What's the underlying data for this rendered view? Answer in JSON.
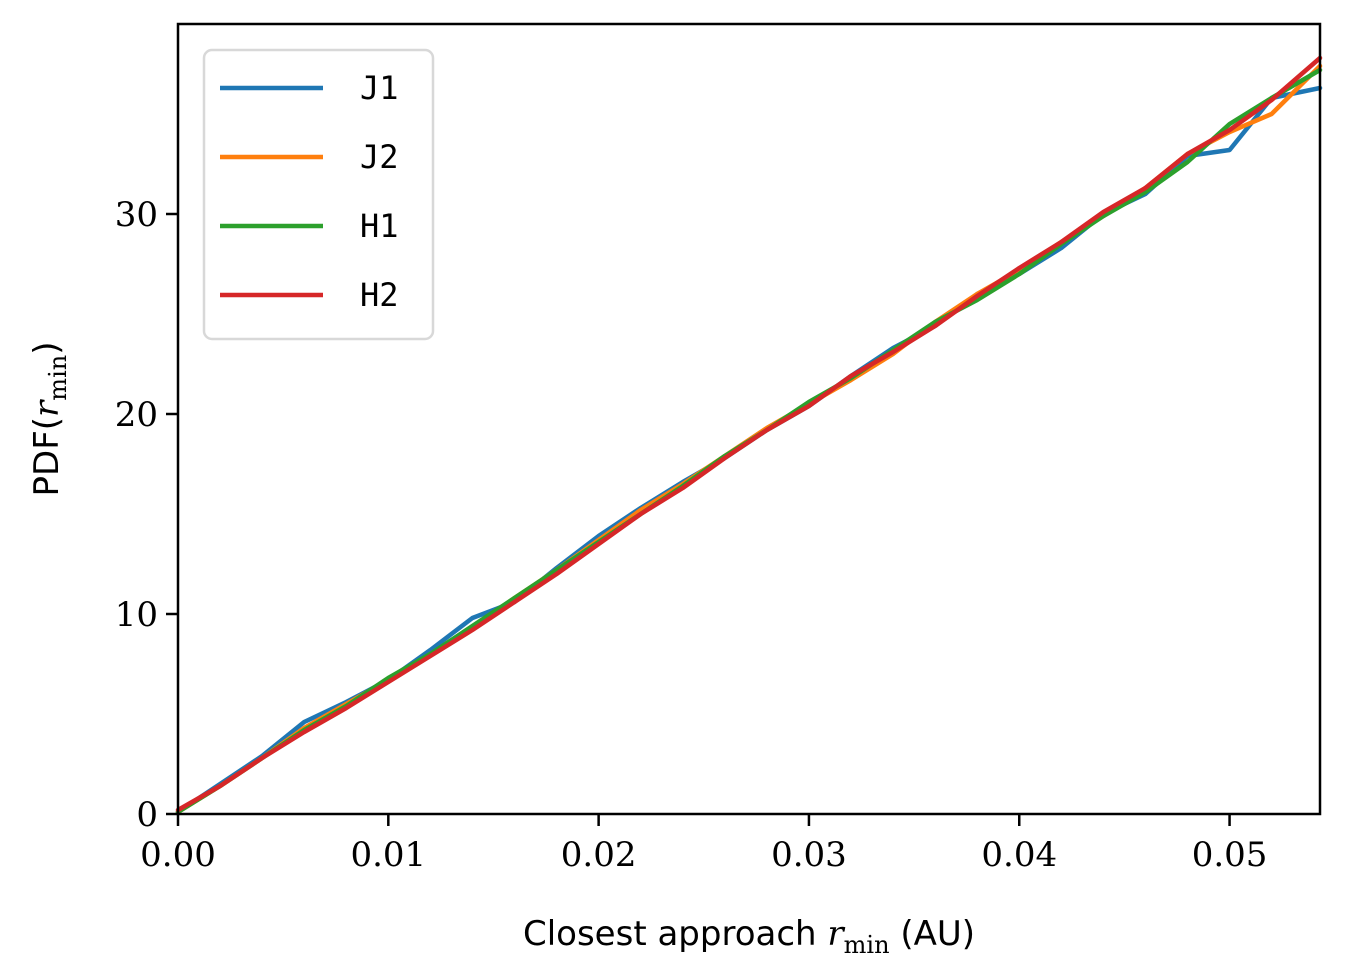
{
  "chart_data": {
    "type": "line",
    "title": "",
    "xlabel_pre": "Closest approach ",
    "xlabel_var": "r",
    "xlabel_sub": "min",
    "xlabel_post": " (AU)",
    "ylabel_pre": "PDF(",
    "ylabel_var": "r",
    "ylabel_sub": "min",
    "ylabel_post": ")",
    "xlim": [
      0,
      0.0543
    ],
    "ylim": [
      0,
      39.5
    ],
    "xticks": [
      0,
      0.01,
      0.02,
      0.03,
      0.04,
      0.05
    ],
    "xtick_labels": [
      "0.00",
      "0.01",
      "0.02",
      "0.03",
      "0.04",
      "0.05"
    ],
    "yticks": [
      0,
      10,
      20,
      30
    ],
    "ytick_labels": [
      "0",
      "10",
      "20",
      "30"
    ],
    "grid": false,
    "legend_position": "top-left",
    "x": [
      0.0,
      0.002,
      0.004,
      0.006,
      0.008,
      0.01,
      0.012,
      0.014,
      0.016,
      0.018,
      0.02,
      0.022,
      0.024,
      0.026,
      0.028,
      0.03,
      0.032,
      0.034,
      0.036,
      0.038,
      0.04,
      0.042,
      0.044,
      0.046,
      0.048,
      0.05,
      0.052,
      0.0543
    ],
    "series": [
      {
        "name": "J1",
        "color": "#1f77b4",
        "values": [
          0.1,
          1.5,
          2.9,
          4.6,
          5.6,
          6.7,
          8.2,
          9.8,
          10.6,
          12.3,
          13.9,
          15.3,
          16.6,
          17.8,
          19.2,
          20.4,
          21.9,
          23.3,
          24.4,
          26.0,
          27.0,
          28.3,
          30.0,
          31.0,
          32.9,
          33.2,
          35.8,
          36.3
        ]
      },
      {
        "name": "J2",
        "color": "#ff7f0e",
        "values": [
          0.1,
          1.4,
          2.8,
          4.3,
          5.5,
          6.7,
          8.0,
          9.3,
          10.8,
          12.2,
          13.7,
          15.2,
          16.5,
          17.9,
          19.3,
          20.5,
          21.7,
          23.0,
          24.6,
          26.0,
          27.2,
          28.6,
          29.9,
          31.3,
          33.0,
          34.1,
          35.0,
          37.4
        ]
      },
      {
        "name": "H1",
        "color": "#2ca02c",
        "values": [
          0.1,
          1.4,
          2.8,
          4.2,
          5.4,
          6.8,
          8.0,
          9.4,
          10.8,
          12.2,
          13.6,
          15.0,
          16.4,
          17.9,
          19.2,
          20.6,
          21.8,
          23.2,
          24.6,
          25.7,
          27.0,
          28.5,
          29.9,
          31.1,
          32.6,
          34.5,
          35.8,
          37.2
        ]
      },
      {
        "name": "H2",
        "color": "#d62728",
        "values": [
          0.2,
          1.4,
          2.8,
          4.1,
          5.3,
          6.6,
          7.9,
          9.2,
          10.6,
          12.0,
          13.5,
          15.0,
          16.3,
          17.8,
          19.2,
          20.4,
          21.9,
          23.1,
          24.4,
          25.9,
          27.3,
          28.6,
          30.1,
          31.3,
          33.0,
          34.2,
          35.7,
          37.8
        ]
      }
    ]
  }
}
